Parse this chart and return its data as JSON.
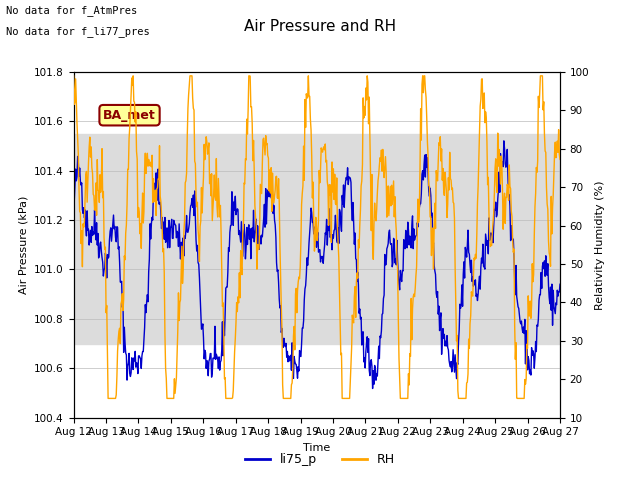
{
  "title": "Air Pressure and RH",
  "xlabel": "Time",
  "ylabel_left": "Air Pressure (kPa)",
  "ylabel_right": "Relativity Humidity (%)",
  "annotation_line1": "No data for f_AtmPres",
  "annotation_line2": "No data for f_li77_pres",
  "box_label": "BA_met",
  "ylim_left": [
    100.4,
    101.8
  ],
  "ylim_right": [
    10,
    100
  ],
  "yticks_left": [
    100.4,
    100.6,
    100.8,
    101.0,
    101.2,
    101.4,
    101.6,
    101.8
  ],
  "yticks_right": [
    10,
    20,
    30,
    40,
    50,
    60,
    70,
    80,
    90,
    100
  ],
  "color_blue": "#0000CC",
  "color_orange": "#FFA500",
  "color_gray_band": "#DCDCDC",
  "band_lo_kpa": 100.7,
  "band_hi_kpa": 101.55,
  "xtick_labels": [
    "Aug 12",
    "Aug 13",
    "Aug 14",
    "Aug 15",
    "Aug 16",
    "Aug 17",
    "Aug 18",
    "Aug 19",
    "Aug 20",
    "Aug 21",
    "Aug 22",
    "Aug 23",
    "Aug 24",
    "Aug 25",
    "Aug 26",
    "Aug 27"
  ],
  "legend_entries": [
    "li75_p",
    "RH"
  ],
  "background_color": "#FFFFFF",
  "title_fontsize": 11,
  "label_fontsize": 8,
  "tick_fontsize": 7.5,
  "annot_fontsize": 7.5
}
